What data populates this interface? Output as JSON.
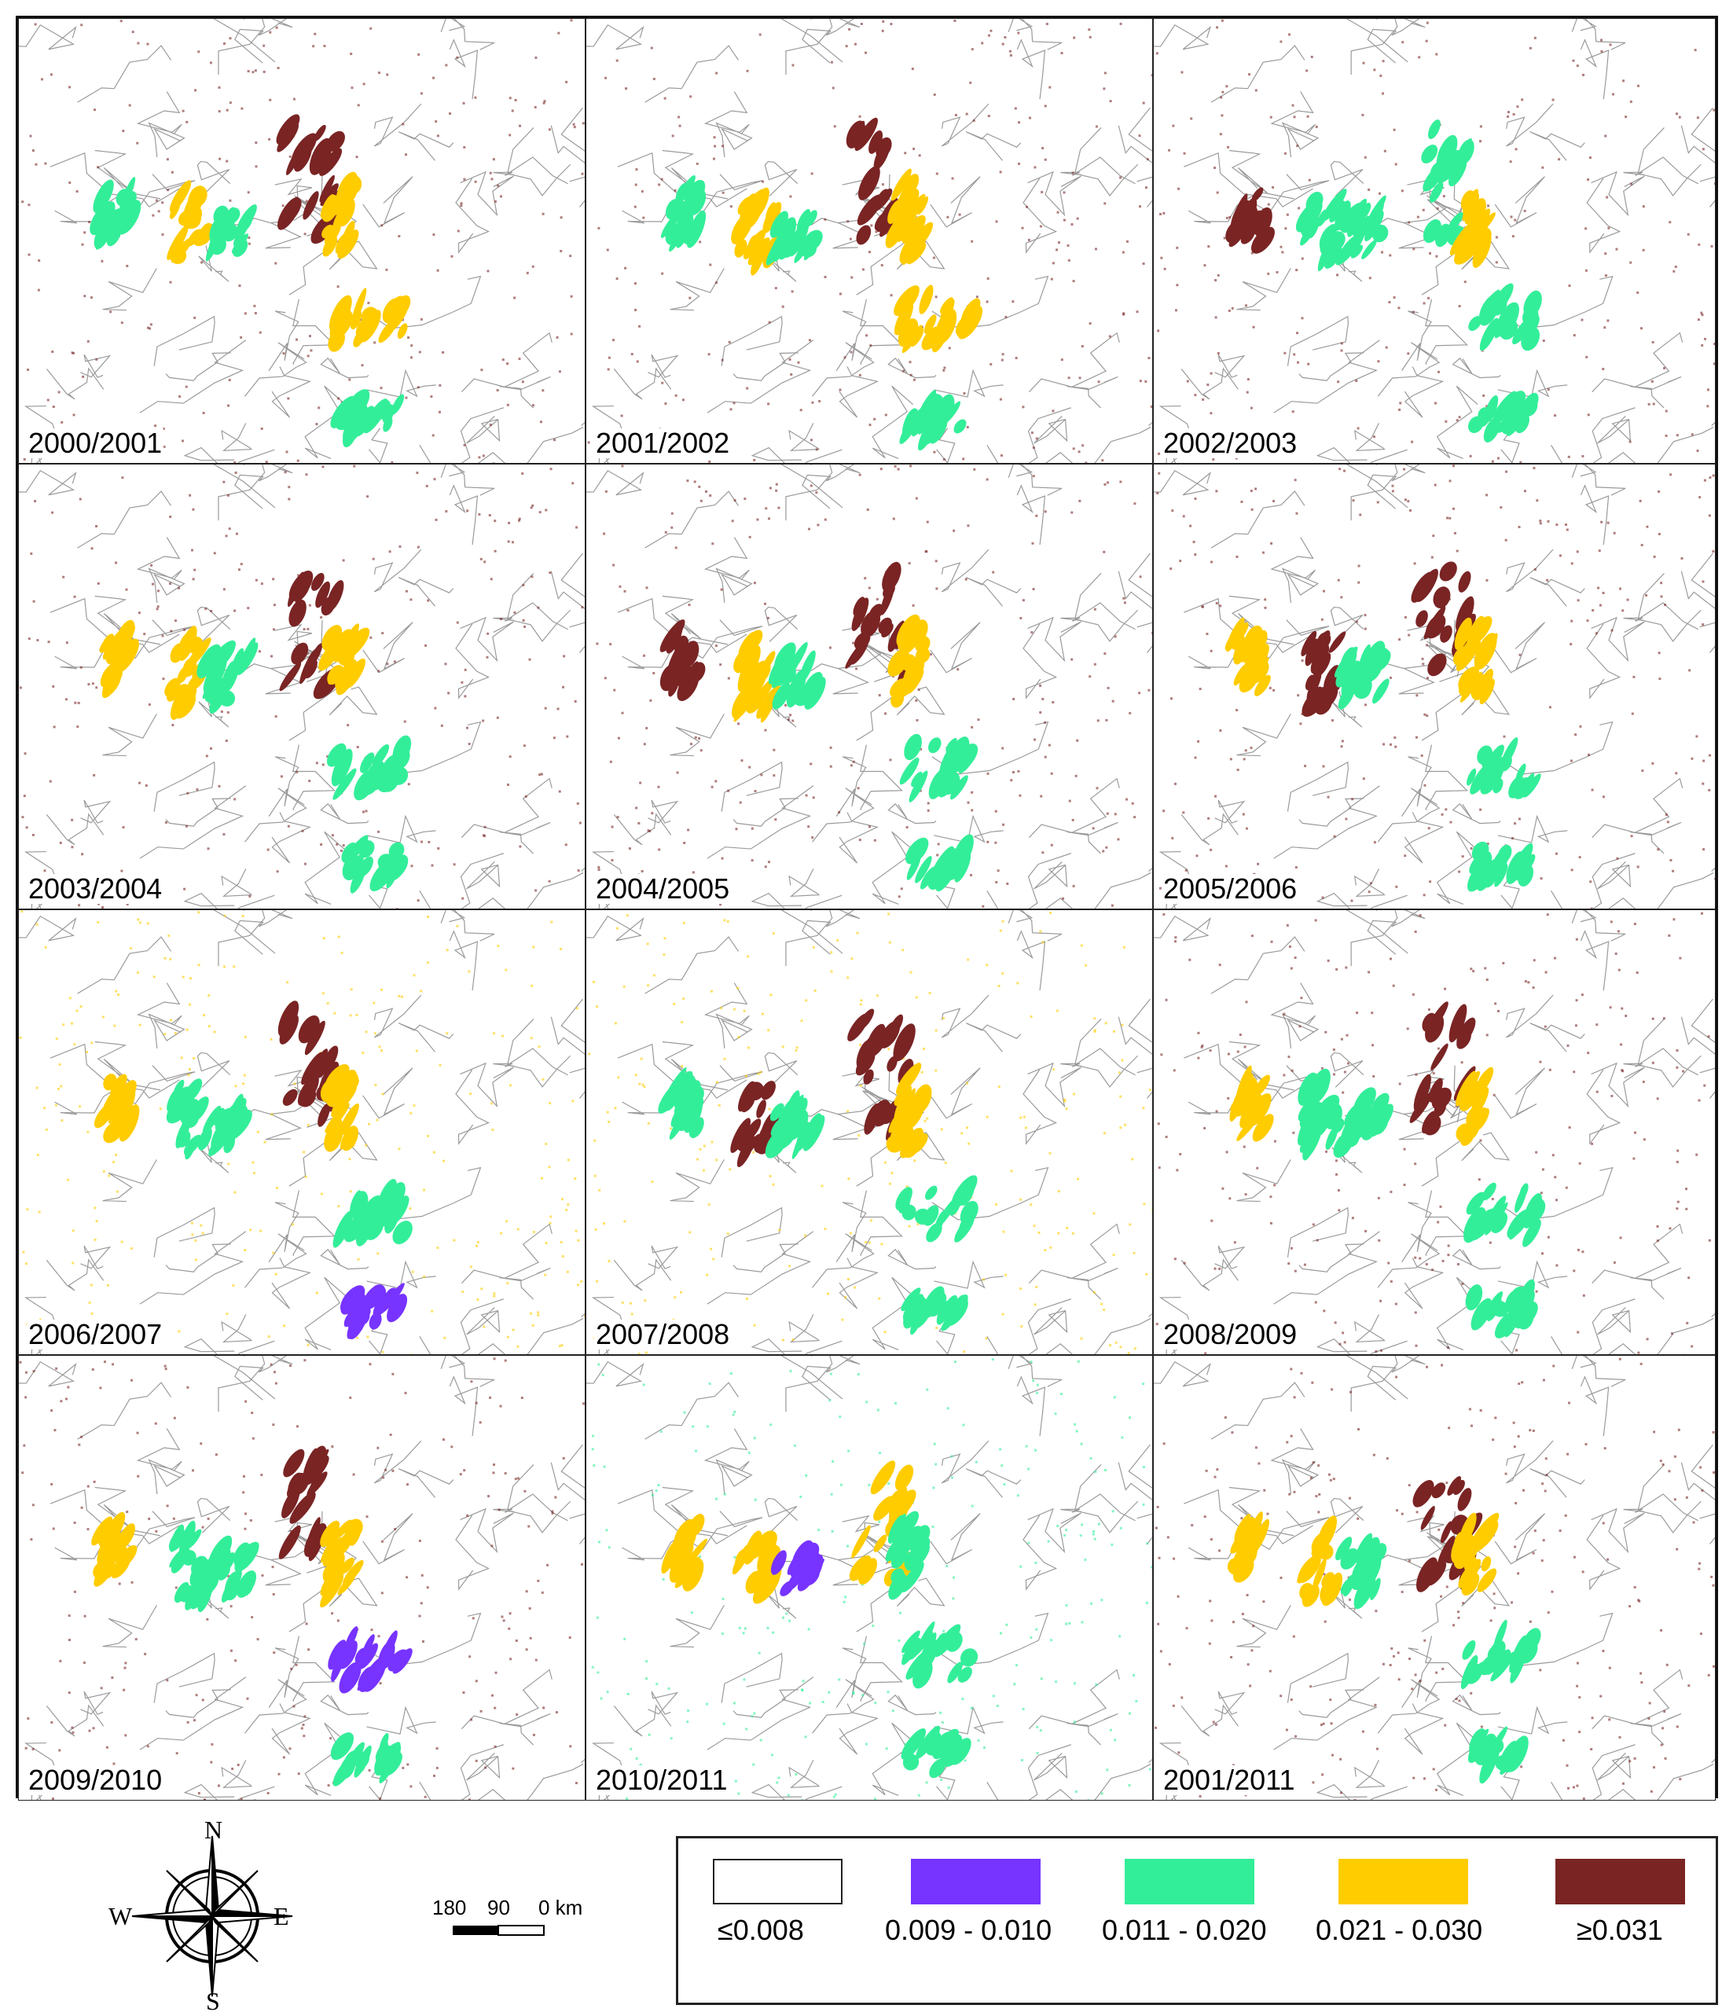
{
  "colors": {
    "class1": "#ffffff",
    "class2": "#7733ff",
    "class3": "#33ee99",
    "class4": "#ffcc00",
    "class5": "#7a2424",
    "border": "#9a9a9a"
  },
  "panels": [
    {
      "label": "2000/2001"
    },
    {
      "label": "2001/2002"
    },
    {
      "label": "2002/2003"
    },
    {
      "label": "2003/2004"
    },
    {
      "label": "2004/2005"
    },
    {
      "label": "2005/2006"
    },
    {
      "label": "2006/2007"
    },
    {
      "label": "2007/2008"
    },
    {
      "label": "2008/2009"
    },
    {
      "label": "2009/2010"
    },
    {
      "label": "2010/2011"
    },
    {
      "label": "2001/2011"
    }
  ],
  "compass": {
    "north": "N",
    "south": "S",
    "east": "E",
    "west": "W",
    "icon": "compass-rose-icon"
  },
  "scale_bar": {
    "labels": [
      "180",
      "90",
      "0 km"
    ]
  },
  "legend": {
    "items": [
      {
        "label": "≤0.008",
        "color": "#ffffff"
      },
      {
        "label": "0.009 - 0.010",
        "color": "#7733ff"
      },
      {
        "label": "0.011 - 0.020",
        "color": "#33ee99"
      },
      {
        "label": "0.021 - 0.030",
        "color": "#ffcc00"
      },
      {
        "label": "≥0.031",
        "color": "#7a2424"
      }
    ]
  }
}
